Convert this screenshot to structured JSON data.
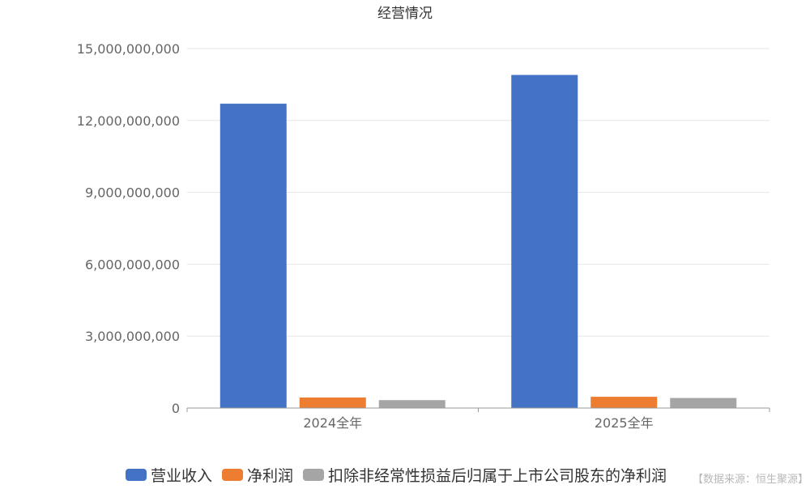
{
  "chart_data": {
    "type": "bar",
    "title": "经营情况",
    "categories": [
      "2024全年",
      "2025全年"
    ],
    "series": [
      {
        "name": "营业收入",
        "color": "#4472c4",
        "values": [
          12700000000,
          13900000000
        ]
      },
      {
        "name": "净利润",
        "color": "#ed7d31",
        "values": [
          440000000,
          470000000
        ]
      },
      {
        "name": "扣除非经常性损益后归属于上市公司股东的净利润",
        "color": "#a5a5a5",
        "values": [
          330000000,
          420000000
        ]
      }
    ],
    "yticks": [
      "0",
      "3,000,000,000",
      "6,000,000,000",
      "9,000,000,000",
      "12,000,000,000",
      "15,000,000,000"
    ],
    "ylim": [
      0,
      15000000000
    ],
    "grid": true,
    "legend_position": "bottom"
  },
  "source_note": "【数据来源：恒生聚源】"
}
